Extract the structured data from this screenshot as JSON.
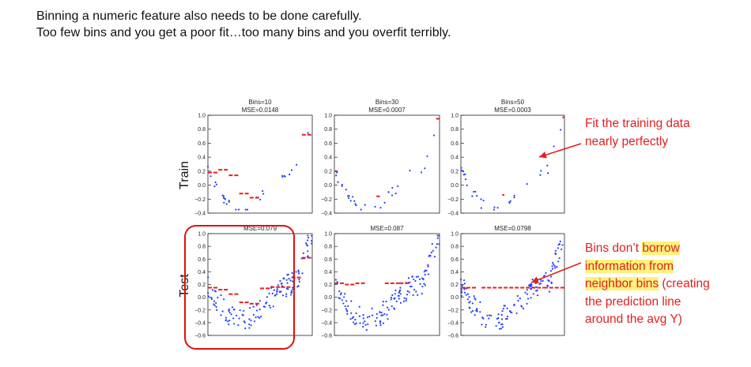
{
  "heading": {
    "line1": "Binning a numeric feature also needs to be done carefully.",
    "line2": "Too few bins and you get a poor fit…too many bins and you overfit terribly."
  },
  "colors": {
    "points": "#2040ff",
    "fit": "#ee1c1c",
    "annotation": "#e02020",
    "highlight": "#fff27a"
  },
  "annotations": {
    "train_note": {
      "line1": "Fit the training data",
      "line2": "nearly perfectly"
    },
    "test_note": {
      "part1": "Bins don’t ",
      "part2": "borrow",
      "part3": "information from",
      "part4": "neighbor bins",
      "part5": " (creating",
      "part6": "the prediction line",
      "part7": "around the avg Y)"
    }
  },
  "chart_data": {
    "type": "scatter",
    "row_labels": [
      "Train",
      "Test"
    ],
    "panels": [
      {
        "row": "Train",
        "title1": "Bins=10",
        "title2": "MSE=0.0148",
        "ylim": [
          -0.4,
          1.0
        ],
        "yticks": [
          "1.0",
          "0.8",
          "0.6",
          "0.4",
          "0.2",
          "0.0",
          "−0.2",
          "−0.4"
        ],
        "fit_segments": [
          [
            0.0,
            0.1,
            0.18
          ],
          [
            0.1,
            0.2,
            0.22
          ],
          [
            0.2,
            0.3,
            0.14
          ],
          [
            0.3,
            0.4,
            -0.12
          ],
          [
            0.4,
            0.5,
            -0.18
          ],
          [
            0.9,
            1.0,
            0.72
          ]
        ]
      },
      {
        "row": "Train",
        "title1": "Bins=30",
        "title2": "MSE=0.0007",
        "ylim": [
          -0.4,
          1.0
        ],
        "yticks": [
          "1.0",
          "0.8",
          "0.6",
          "0.4",
          "0.2",
          "0.0",
          "−0.2",
          "−0.4"
        ],
        "fit_segments": [
          [
            0.0,
            0.033,
            0.2
          ],
          [
            0.4,
            0.433,
            -0.16
          ],
          [
            0.967,
            1.0,
            0.95
          ]
        ]
      },
      {
        "row": "Train",
        "title1": "Bins=50",
        "title2": "MSE=0.0003",
        "ylim": [
          -0.4,
          1.0
        ],
        "yticks": [
          "1.0",
          "0.8",
          "0.6",
          "0.4",
          "0.2",
          "0.0",
          "−0.2",
          "−0.4"
        ],
        "fit_segments": [
          [
            0.4,
            0.42,
            -0.14
          ],
          [
            0.98,
            1.0,
            0.97
          ]
        ]
      },
      {
        "row": "Test",
        "title1": "",
        "title2": "MSE=0.079",
        "ylim": [
          -0.6,
          1.0
        ],
        "yticks": [
          "1.0",
          "0.8",
          "0.6",
          "0.4",
          "0.2",
          "0.0",
          "−0.2",
          "−0.4",
          "−0.6"
        ],
        "fit_segments": [
          [
            0.0,
            0.1,
            0.15
          ],
          [
            0.1,
            0.2,
            0.12
          ],
          [
            0.2,
            0.3,
            0.05
          ],
          [
            0.3,
            0.4,
            -0.08
          ],
          [
            0.4,
            0.5,
            -0.1
          ],
          [
            0.5,
            0.6,
            0.14
          ],
          [
            0.6,
            0.7,
            0.16
          ],
          [
            0.7,
            0.8,
            0.16
          ],
          [
            0.8,
            0.9,
            0.31
          ],
          [
            0.9,
            1.0,
            0.62
          ]
        ]
      },
      {
        "row": "Test",
        "title1": "",
        "title2": "MSE=0.087",
        "ylim": [
          -0.6,
          1.0
        ],
        "yticks": [
          "1.0",
          "0.8",
          "0.6",
          "0.4",
          "0.2",
          "0.0",
          "−0.2",
          "−0.4",
          "−0.6"
        ],
        "fit_segments": [
          [
            0.0,
            0.1,
            0.22
          ],
          [
            0.1,
            0.2,
            0.2
          ],
          [
            0.2,
            0.3,
            0.22
          ],
          [
            0.48,
            0.62,
            0.22
          ],
          [
            0.62,
            0.72,
            0.22
          ]
        ]
      },
      {
        "row": "Test",
        "title1": "",
        "title2": "MSE=0.0798",
        "ylim": [
          -0.6,
          1.0
        ],
        "yticks": [
          "1.0",
          "0.8",
          "0.6",
          "0.4",
          "0.2",
          "0.0",
          "−0.2",
          "−0.4",
          "−0.6"
        ],
        "fit_segments": [
          [
            0.0,
            0.15,
            0.15
          ],
          [
            0.2,
            0.8,
            0.15
          ],
          [
            0.8,
            1.0,
            0.15
          ]
        ]
      }
    ]
  }
}
